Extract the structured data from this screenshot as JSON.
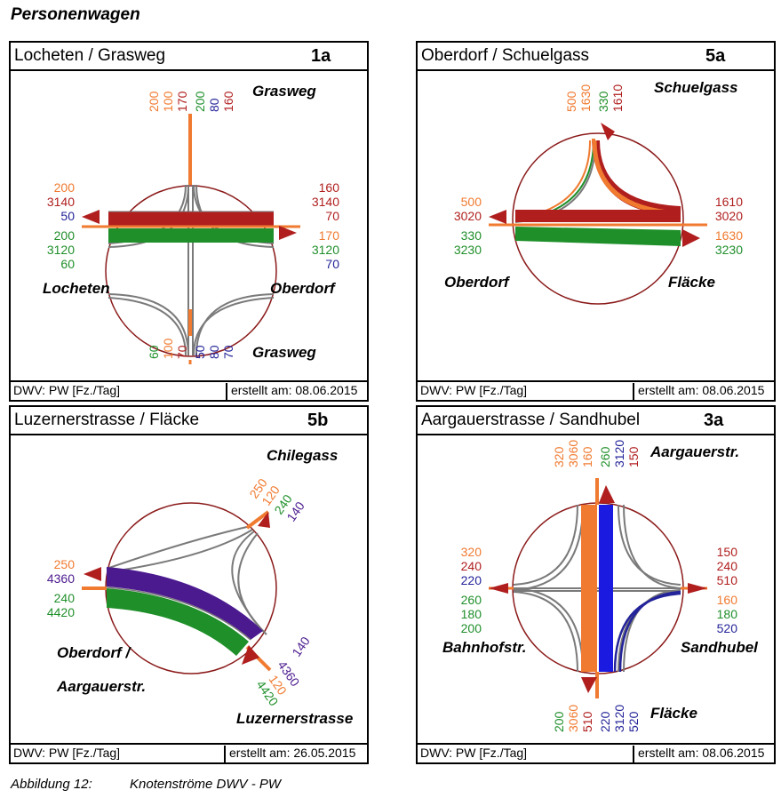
{
  "page": {
    "title": "Personenwagen"
  },
  "colors": {
    "orange": "#F07A30",
    "red": "#B01E1E",
    "green": "#1F8F2A",
    "blue": "#24249A",
    "purple": "#4B1A8F",
    "grey": "#7a7a7a"
  },
  "panels": [
    {
      "name": "Locheten / Grasweg",
      "id": "1a",
      "footer_left": "DWV: PW [Fz./Tag]",
      "footer_right": "erstellt am: 08.06.2015",
      "streets": {
        "top": "Grasweg",
        "left": "Locheten",
        "right": "Oberdorf",
        "bottom": "Grasweg"
      },
      "top_in": [
        "200",
        "100",
        "170"
      ],
      "top_out": [
        "200",
        "80",
        "160"
      ],
      "left_upper": [
        "200",
        "3140",
        "50"
      ],
      "left_lower": [
        "200",
        "3120",
        "60"
      ],
      "right_upper": [
        "160",
        "3140",
        "70"
      ],
      "right_lower": [
        "170",
        "3120",
        "70"
      ],
      "bottom_left": [
        "60",
        "100",
        "70"
      ],
      "bottom_right": [
        "50",
        "80",
        "70"
      ]
    },
    {
      "name": "Oberdorf / Schuelgass",
      "id": "5a",
      "footer_left": "DWV: PW [Fz./Tag]",
      "footer_right": "erstellt am: 08.06.2015",
      "streets": {
        "top": "Schuelgass",
        "left": "Oberdorf",
        "right": "Fläcke"
      },
      "top_in": [
        "500",
        "1630"
      ],
      "top_out": [
        "330",
        "1610"
      ],
      "left_upper": [
        "500",
        "3020"
      ],
      "left_lower": [
        "330",
        "3230"
      ],
      "right_upper": [
        "1610",
        "3020"
      ],
      "right_lower": [
        "1630",
        "3230"
      ]
    },
    {
      "name": "Luzernerstrasse / Fläcke",
      "id": "5b",
      "footer_left": "DWV: PW [Fz./Tag]",
      "footer_right": "erstellt am: 26.05.2015",
      "streets": {
        "top_right": "Chilegass",
        "left_line1": "Oberdorf /",
        "left_line2": "Aargauerstr.",
        "bottom_right": "Luzernerstrasse"
      },
      "chilegass_in": [
        "250",
        "120"
      ],
      "chilegass_out": [
        "240",
        "140"
      ],
      "left_upper": [
        "250",
        "4360"
      ],
      "left_lower": [
        "240",
        "4420"
      ],
      "luzern_in": [
        "140",
        "4360"
      ],
      "luzern_out": [
        "120",
        "4420"
      ]
    },
    {
      "name": "Aargauerstrasse / Sandhubel",
      "id": "3a",
      "footer_left": "DWV: PW [Fz./Tag]",
      "footer_right": "erstellt am: 08.06.2015",
      "streets": {
        "top": "Aargauerstr.",
        "left": "Bahnhofstr.",
        "right": "Sandhubel",
        "bottom": "Fläcke"
      },
      "top_in": [
        "320",
        "3060",
        "160"
      ],
      "top_out": [
        "260",
        "3120",
        "150"
      ],
      "left_upper": [
        "320",
        "240",
        "220"
      ],
      "left_lower": [
        "260",
        "180",
        "200"
      ],
      "right_upper": [
        "150",
        "240",
        "510"
      ],
      "right_lower": [
        "160",
        "180",
        "520"
      ],
      "bottom_left": [
        "200",
        "3060",
        "510"
      ],
      "bottom_right": [
        "220",
        "3120",
        "520"
      ]
    }
  ],
  "caption": {
    "label": "Abbildung 12:",
    "text": "Knotenströme DWV - PW"
  }
}
